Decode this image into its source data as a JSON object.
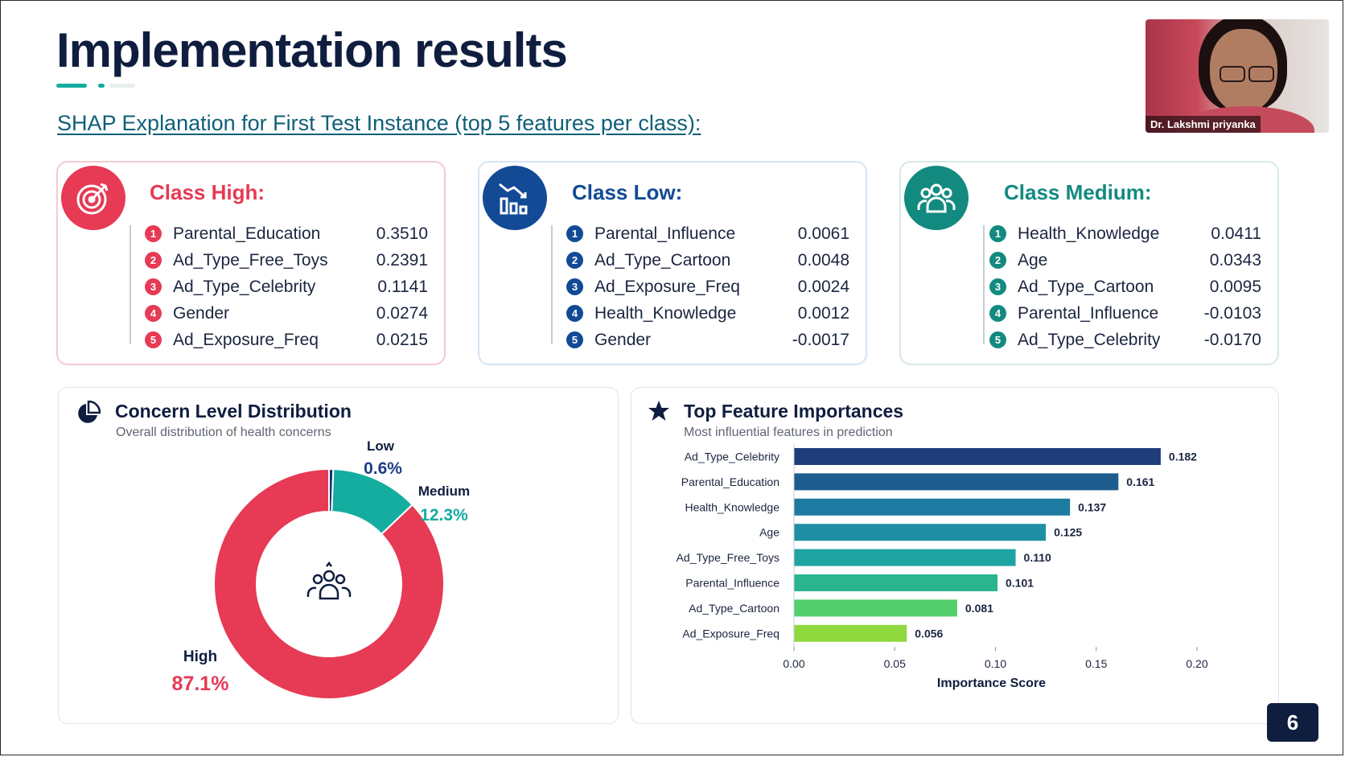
{
  "slide": {
    "title": "Implementation results",
    "subtitle": "SHAP Explanation for First Test Instance (top 5 features per class):",
    "page_number": "6"
  },
  "video": {
    "name": "Dr. Lakshmi priyanka"
  },
  "classes": [
    {
      "title": "Class High:",
      "icon": "target-icon",
      "color": "#e63a55",
      "features": [
        {
          "rank": "1",
          "name": "Parental_Education",
          "value": "0.3510"
        },
        {
          "rank": "2",
          "name": "Ad_Type_Free_Toys",
          "value": "0.2391"
        },
        {
          "rank": "3",
          "name": "Ad_Type_Celebrity",
          "value": "0.1141"
        },
        {
          "rank": "4",
          "name": "Gender",
          "value": "0.0274"
        },
        {
          "rank": "5",
          "name": "Ad_Exposure_Freq",
          "value": "0.0215"
        }
      ]
    },
    {
      "title": "Class Low:",
      "icon": "trend-down-chart-icon",
      "color": "#124a96",
      "features": [
        {
          "rank": "1",
          "name": "Parental_Influence",
          "value": "0.0061"
        },
        {
          "rank": "2",
          "name": "Ad_Type_Cartoon",
          "value": "0.0048"
        },
        {
          "rank": "3",
          "name": "Ad_Exposure_Freq",
          "value": "0.0024"
        },
        {
          "rank": "4",
          "name": "Health_Knowledge",
          "value": "0.0012"
        },
        {
          "rank": "5",
          "name": "Gender",
          "value": "-0.0017"
        }
      ]
    },
    {
      "title": "Class Medium:",
      "icon": "people-group-icon",
      "color": "#138a80",
      "features": [
        {
          "rank": "1",
          "name": "Health_Knowledge",
          "value": "0.0411"
        },
        {
          "rank": "2",
          "name": "Age",
          "value": "0.0343"
        },
        {
          "rank": "3",
          "name": "Ad_Type_Cartoon",
          "value": "0.0095"
        },
        {
          "rank": "4",
          "name": "Parental_Influence",
          "value": "-0.0103"
        },
        {
          "rank": "5",
          "name": "Ad_Type_Celebrity",
          "value": "-0.0170"
        }
      ]
    }
  ],
  "concern_panel": {
    "title": "Concern Level Distribution",
    "subtitle": "Overall distribution of health concerns",
    "icon": "pie-chart-icon"
  },
  "importance_panel": {
    "title": "Top Feature Importances",
    "subtitle": "Most influential features in prediction",
    "icon": "star-icon"
  },
  "chart_data": [
    {
      "type": "pie",
      "variant": "donut",
      "categories": [
        "High",
        "Medium",
        "Low"
      ],
      "values": [
        87.1,
        12.3,
        0.6
      ],
      "value_labels": [
        "87.1%",
        "12.3%",
        "0.6%"
      ],
      "colors": [
        "#e63a55",
        "#14ada0",
        "#1b2f6e"
      ],
      "center_icon": "people-group-icon"
    },
    {
      "type": "bar",
      "orientation": "horizontal",
      "categories": [
        "Ad_Type_Celebrity",
        "Parental_Education",
        "Health_Knowledge",
        "Age",
        "Ad_Type_Free_Toys",
        "Parental_Influence",
        "Ad_Type_Cartoon",
        "Ad_Exposure_Freq"
      ],
      "values": [
        0.182,
        0.161,
        0.137,
        0.125,
        0.11,
        0.101,
        0.081,
        0.056
      ],
      "value_labels": [
        "0.182",
        "0.161",
        "0.137",
        "0.125",
        "0.110",
        "0.101",
        "0.081",
        "0.056"
      ],
      "colors": [
        "#1f3d7a",
        "#1f5c8e",
        "#1e7aa0",
        "#1e8fa5",
        "#1fa3a3",
        "#2bb58f",
        "#52cf6c",
        "#8fd93f"
      ],
      "xlabel": "Importance Score",
      "ylabel": "",
      "xlim": [
        0,
        0.2
      ],
      "xticks": [
        "0.00",
        "0.05",
        "0.10",
        "0.15",
        "0.20"
      ]
    }
  ]
}
